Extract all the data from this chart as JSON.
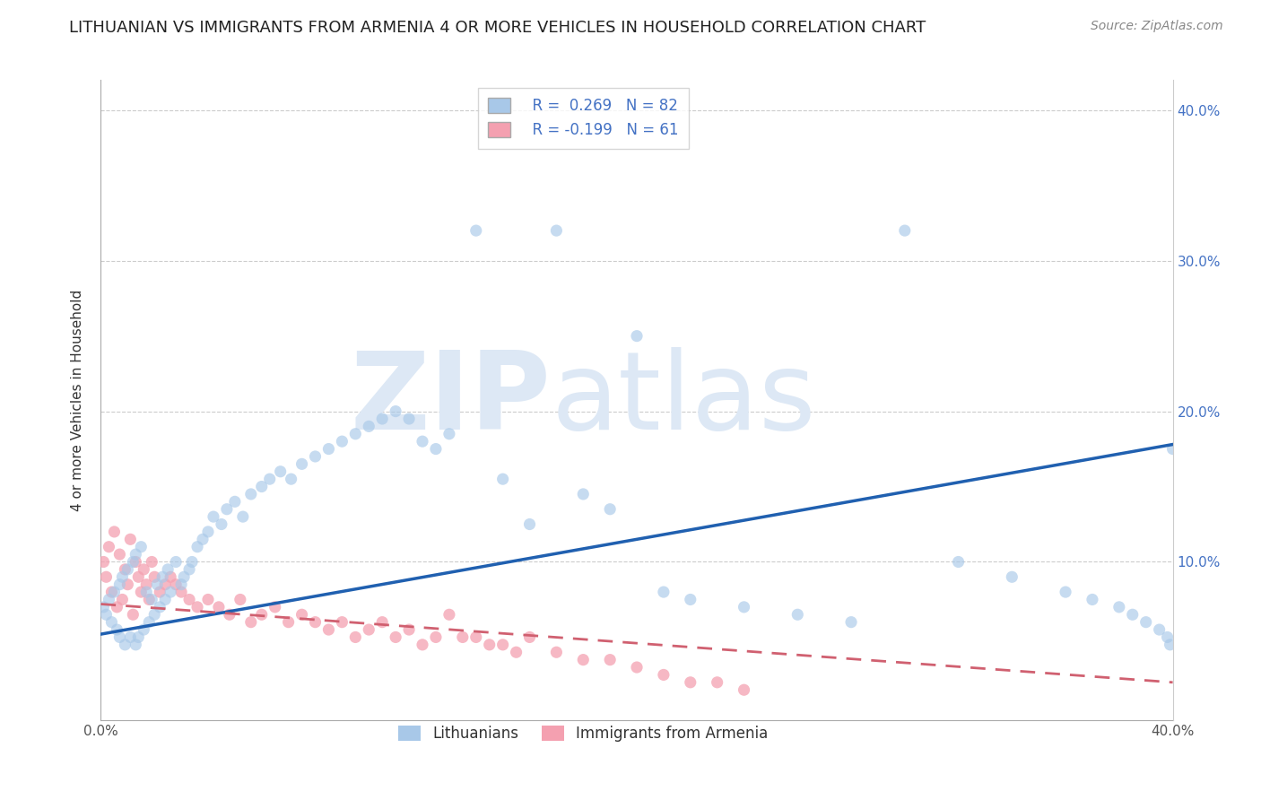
{
  "title": "LITHUANIAN VS IMMIGRANTS FROM ARMENIA 4 OR MORE VEHICLES IN HOUSEHOLD CORRELATION CHART",
  "source": "Source: ZipAtlas.com",
  "ylabel": "4 or more Vehicles in Household",
  "xlabel": "",
  "xlim": [
    0.0,
    0.4
  ],
  "ylim": [
    -0.005,
    0.42
  ],
  "xticks": [
    0.0,
    0.1,
    0.2,
    0.3,
    0.4
  ],
  "xtick_labels": [
    "0.0%",
    "",
    "",
    "",
    "40.0%"
  ],
  "yticks_right": [
    0.1,
    0.2,
    0.3,
    0.4
  ],
  "ytick_labels_right": [
    "10.0%",
    "20.0%",
    "30.0%",
    "40.0%"
  ],
  "series1_name": "Lithuanians",
  "series2_name": "Immigrants from Armenia",
  "series1_color": "#a8c8e8",
  "series2_color": "#f4a0b0",
  "series1_line_color": "#2060b0",
  "series2_line_color": "#d06070",
  "watermark_color": "#dde8f5",
  "background_color": "#ffffff",
  "grid_color": "#cccccc",
  "title_fontsize": 13,
  "axis_label_fontsize": 11,
  "tick_fontsize": 11,
  "legend_fontsize": 12,
  "right_tick_color": "#4472c4",
  "series1_R": 0.269,
  "series1_N": 82,
  "series2_R": -0.199,
  "series2_N": 61,
  "series1_legend_label": "R =  0.269   N = 82",
  "series2_legend_label": "R = -0.199   N = 61",
  "series1_x": [
    0.001,
    0.002,
    0.003,
    0.004,
    0.005,
    0.006,
    0.007,
    0.007,
    0.008,
    0.009,
    0.01,
    0.011,
    0.012,
    0.013,
    0.013,
    0.014,
    0.015,
    0.016,
    0.017,
    0.018,
    0.019,
    0.02,
    0.021,
    0.022,
    0.023,
    0.024,
    0.025,
    0.026,
    0.028,
    0.03,
    0.031,
    0.033,
    0.034,
    0.036,
    0.038,
    0.04,
    0.042,
    0.045,
    0.047,
    0.05,
    0.053,
    0.056,
    0.06,
    0.063,
    0.067,
    0.071,
    0.075,
    0.08,
    0.085,
    0.09,
    0.095,
    0.1,
    0.105,
    0.11,
    0.115,
    0.12,
    0.125,
    0.13,
    0.14,
    0.15,
    0.16,
    0.17,
    0.18,
    0.19,
    0.2,
    0.21,
    0.22,
    0.24,
    0.26,
    0.28,
    0.3,
    0.32,
    0.34,
    0.36,
    0.37,
    0.38,
    0.385,
    0.39,
    0.395,
    0.398,
    0.399,
    0.4
  ],
  "series1_y": [
    0.07,
    0.065,
    0.075,
    0.06,
    0.08,
    0.055,
    0.085,
    0.05,
    0.09,
    0.045,
    0.095,
    0.05,
    0.1,
    0.045,
    0.105,
    0.05,
    0.11,
    0.055,
    0.08,
    0.06,
    0.075,
    0.065,
    0.085,
    0.07,
    0.09,
    0.075,
    0.095,
    0.08,
    0.1,
    0.085,
    0.09,
    0.095,
    0.1,
    0.11,
    0.115,
    0.12,
    0.13,
    0.125,
    0.135,
    0.14,
    0.13,
    0.145,
    0.15,
    0.155,
    0.16,
    0.155,
    0.165,
    0.17,
    0.175,
    0.18,
    0.185,
    0.19,
    0.195,
    0.2,
    0.195,
    0.18,
    0.175,
    0.185,
    0.32,
    0.155,
    0.125,
    0.32,
    0.145,
    0.135,
    0.25,
    0.08,
    0.075,
    0.07,
    0.065,
    0.06,
    0.32,
    0.1,
    0.09,
    0.08,
    0.075,
    0.07,
    0.065,
    0.06,
    0.055,
    0.05,
    0.045,
    0.175
  ],
  "series2_x": [
    0.001,
    0.002,
    0.003,
    0.004,
    0.005,
    0.006,
    0.007,
    0.008,
    0.009,
    0.01,
    0.011,
    0.012,
    0.013,
    0.014,
    0.015,
    0.016,
    0.017,
    0.018,
    0.019,
    0.02,
    0.022,
    0.024,
    0.026,
    0.028,
    0.03,
    0.033,
    0.036,
    0.04,
    0.044,
    0.048,
    0.052,
    0.056,
    0.06,
    0.065,
    0.07,
    0.075,
    0.08,
    0.085,
    0.09,
    0.095,
    0.1,
    0.105,
    0.11,
    0.115,
    0.12,
    0.125,
    0.13,
    0.135,
    0.14,
    0.145,
    0.15,
    0.155,
    0.16,
    0.17,
    0.18,
    0.19,
    0.2,
    0.21,
    0.22,
    0.23,
    0.24
  ],
  "series2_y": [
    0.1,
    0.09,
    0.11,
    0.08,
    0.12,
    0.07,
    0.105,
    0.075,
    0.095,
    0.085,
    0.115,
    0.065,
    0.1,
    0.09,
    0.08,
    0.095,
    0.085,
    0.075,
    0.1,
    0.09,
    0.08,
    0.085,
    0.09,
    0.085,
    0.08,
    0.075,
    0.07,
    0.075,
    0.07,
    0.065,
    0.075,
    0.06,
    0.065,
    0.07,
    0.06,
    0.065,
    0.06,
    0.055,
    0.06,
    0.05,
    0.055,
    0.06,
    0.05,
    0.055,
    0.045,
    0.05,
    0.065,
    0.05,
    0.05,
    0.045,
    0.045,
    0.04,
    0.05,
    0.04,
    0.035,
    0.035,
    0.03,
    0.025,
    0.02,
    0.02,
    0.015
  ],
  "trend1_x": [
    0.0,
    0.4
  ],
  "trend1_y": [
    0.052,
    0.178
  ],
  "trend2_x": [
    0.0,
    0.4
  ],
  "trend2_y": [
    0.072,
    0.02
  ]
}
